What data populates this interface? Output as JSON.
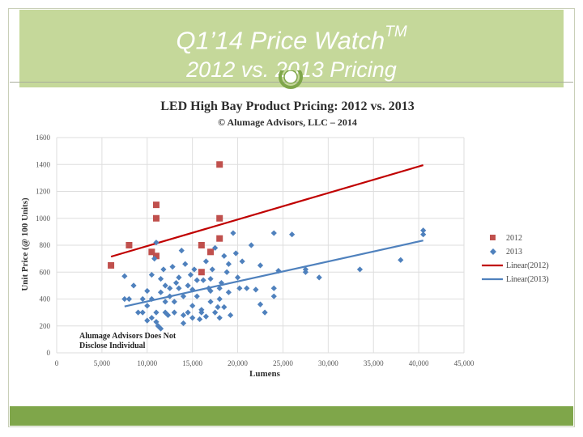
{
  "slide": {
    "title": "Q1’14 Price Watch",
    "title_mark": "TM",
    "subtitle": "2012 vs. 2013 Pricing",
    "colors": {
      "header": "#c5d89a",
      "footer": "#7fa64a",
      "ornament": "#7fa64a"
    }
  },
  "chart_data": {
    "type": "scatter",
    "title": "LED High Bay Product Pricing: 2012 vs. 2013",
    "subtitle": "© Alumage Advisors, LLC – 2014",
    "xlabel": "Lumens",
    "ylabel": "Unit Price (@ 100 Units)",
    "xlim": [
      0,
      45000
    ],
    "ylim": [
      0,
      1600
    ],
    "x_ticks": [
      "0",
      "5,000",
      "10,000",
      "15,000",
      "20,000",
      "25,000",
      "30,000",
      "35,000",
      "40,000",
      "45,000"
    ],
    "y_ticks": [
      "0",
      "200",
      "400",
      "600",
      "800",
      "1000",
      "1200",
      "1400",
      "1600"
    ],
    "grid": true,
    "legend_position": "right",
    "annotation": [
      "Alumage Advisors Does Not",
      "Disclose Individual"
    ],
    "series": [
      {
        "name": "2012",
        "marker": "square",
        "color": "#c0504d",
        "points": [
          [
            6000,
            650
          ],
          [
            8000,
            800
          ],
          [
            10500,
            750
          ],
          [
            11000,
            1100
          ],
          [
            11000,
            1000
          ],
          [
            11000,
            720
          ],
          [
            16000,
            800
          ],
          [
            16000,
            600
          ],
          [
            17000,
            750
          ],
          [
            18000,
            1400
          ],
          [
            18000,
            1000
          ],
          [
            18000,
            850
          ]
        ]
      },
      {
        "name": "2013",
        "marker": "diamond",
        "color": "#4f81bd",
        "points": [
          [
            7500,
            570
          ],
          [
            7500,
            400
          ],
          [
            8000,
            400
          ],
          [
            8500,
            500
          ],
          [
            9000,
            300
          ],
          [
            9500,
            300
          ],
          [
            9500,
            400
          ],
          [
            10000,
            240
          ],
          [
            10000,
            350
          ],
          [
            10000,
            460
          ],
          [
            10500,
            260
          ],
          [
            10500,
            400
          ],
          [
            10500,
            580
          ],
          [
            10800,
            700
          ],
          [
            11000,
            820
          ],
          [
            11000,
            230
          ],
          [
            11000,
            300
          ],
          [
            11200,
            200
          ],
          [
            11500,
            180
          ],
          [
            11500,
            450
          ],
          [
            11500,
            550
          ],
          [
            11800,
            620
          ],
          [
            12000,
            300
          ],
          [
            12000,
            380
          ],
          [
            12000,
            500
          ],
          [
            12300,
            280
          ],
          [
            12500,
            420
          ],
          [
            12500,
            480
          ],
          [
            12800,
            640
          ],
          [
            13000,
            300
          ],
          [
            13000,
            380
          ],
          [
            13200,
            520
          ],
          [
            13500,
            560
          ],
          [
            13500,
            480
          ],
          [
            13800,
            760
          ],
          [
            14000,
            220
          ],
          [
            14000,
            280
          ],
          [
            14000,
            420
          ],
          [
            14200,
            660
          ],
          [
            14500,
            300
          ],
          [
            14500,
            500
          ],
          [
            14800,
            580
          ],
          [
            15000,
            260
          ],
          [
            15000,
            350
          ],
          [
            15000,
            470
          ],
          [
            15200,
            620
          ],
          [
            15500,
            420
          ],
          [
            15500,
            540
          ],
          [
            15800,
            250
          ],
          [
            16000,
            320
          ],
          [
            16000,
            300
          ],
          [
            16200,
            540
          ],
          [
            16500,
            680
          ],
          [
            16500,
            270
          ],
          [
            16800,
            480
          ],
          [
            17000,
            380
          ],
          [
            17000,
            460
          ],
          [
            17000,
            550
          ],
          [
            17200,
            620
          ],
          [
            17500,
            780
          ],
          [
            17500,
            300
          ],
          [
            17800,
            340
          ],
          [
            18000,
            480
          ],
          [
            18000,
            260
          ],
          [
            18000,
            400
          ],
          [
            18200,
            520
          ],
          [
            18500,
            720
          ],
          [
            18500,
            340
          ],
          [
            18800,
            600
          ],
          [
            19000,
            660
          ],
          [
            19000,
            450
          ],
          [
            19200,
            280
          ],
          [
            19500,
            890
          ],
          [
            19800,
            740
          ],
          [
            20000,
            560
          ],
          [
            20200,
            480
          ],
          [
            20500,
            680
          ],
          [
            21000,
            480
          ],
          [
            21500,
            800
          ],
          [
            22000,
            470
          ],
          [
            22500,
            360
          ],
          [
            22500,
            650
          ],
          [
            23000,
            300
          ],
          [
            24000,
            890
          ],
          [
            24000,
            480
          ],
          [
            24000,
            420
          ],
          [
            24500,
            610
          ],
          [
            26000,
            880
          ],
          [
            27500,
            600
          ],
          [
            27500,
            620
          ],
          [
            29000,
            560
          ],
          [
            33500,
            620
          ],
          [
            38000,
            690
          ],
          [
            40500,
            910
          ],
          [
            40500,
            880
          ]
        ]
      }
    ],
    "trendlines": [
      {
        "name": "Linear(2012)",
        "color": "#c00000",
        "x": [
          6000,
          40500
        ],
        "y": [
          715,
          1395
        ]
      },
      {
        "name": "Linear(2013)",
        "color": "#4f81bd",
        "x": [
          7500,
          40500
        ],
        "y": [
          345,
          835
        ]
      }
    ]
  }
}
